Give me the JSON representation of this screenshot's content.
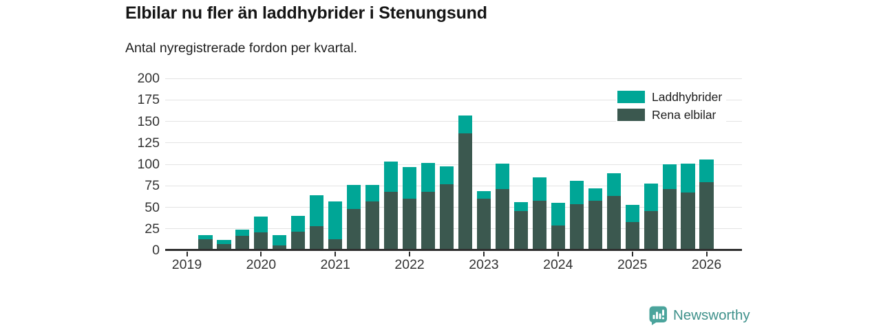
{
  "chart_data": {
    "type": "bar",
    "stacked": true,
    "title": "Elbilar nu fler än laddhybrider i Stenungsund",
    "subtitle": "Antal nyregistrerade fordon per kvartal.",
    "categories": [
      "2019 Q2",
      "2019 Q3",
      "2019 Q4",
      "2020 Q1",
      "2020 Q2",
      "2020 Q3",
      "2020 Q4",
      "2021 Q1",
      "2021 Q2",
      "2021 Q3",
      "2021 Q4",
      "2022 Q1",
      "2022 Q2",
      "2022 Q3",
      "2022 Q4",
      "2023 Q1",
      "2023 Q2",
      "2023 Q3",
      "2023 Q4",
      "2024 Q1",
      "2024 Q2",
      "2024 Q3",
      "2024 Q4",
      "2025 Q1",
      "2025 Q2",
      "2025 Q3",
      "2025 Q4",
      "2026 Q1"
    ],
    "series": [
      {
        "name": "Laddhybrider",
        "color": "#00a696",
        "values": [
          5,
          5,
          7,
          18,
          12,
          18,
          36,
          44,
          28,
          19,
          35,
          37,
          34,
          21,
          21,
          9,
          30,
          10,
          27,
          26,
          27,
          14,
          27,
          20,
          32,
          29,
          34,
          27
        ]
      },
      {
        "name": "Rena elbilar",
        "color": "#3b584f",
        "values": [
          13,
          7,
          17,
          21,
          6,
          22,
          28,
          13,
          48,
          57,
          68,
          60,
          68,
          77,
          136,
          60,
          71,
          46,
          58,
          29,
          54,
          58,
          63,
          33,
          46,
          71,
          67,
          79
        ]
      }
    ],
    "stack_order_bottom_to_top": [
      "Rena elbilar",
      "Laddhybrider"
    ],
    "x_tick_labels": [
      "2019",
      "2020",
      "2021",
      "2022",
      "2023",
      "2024",
      "2025",
      "2026"
    ],
    "y_ticks": [
      0,
      25,
      50,
      75,
      100,
      125,
      150,
      175,
      200
    ],
    "ylim": [
      0,
      200
    ],
    "grid": "horizontal",
    "legend_position": "top-right",
    "axis_color": "#2e2e2e",
    "gridline_color": "#e3e3e3",
    "tick_label_color": "#333333"
  },
  "footer": {
    "brand": "Newsworthy",
    "brand_color": "#3f918b",
    "icon": "newsworthy-logo-icon",
    "icon_color": "#4ba49c"
  }
}
